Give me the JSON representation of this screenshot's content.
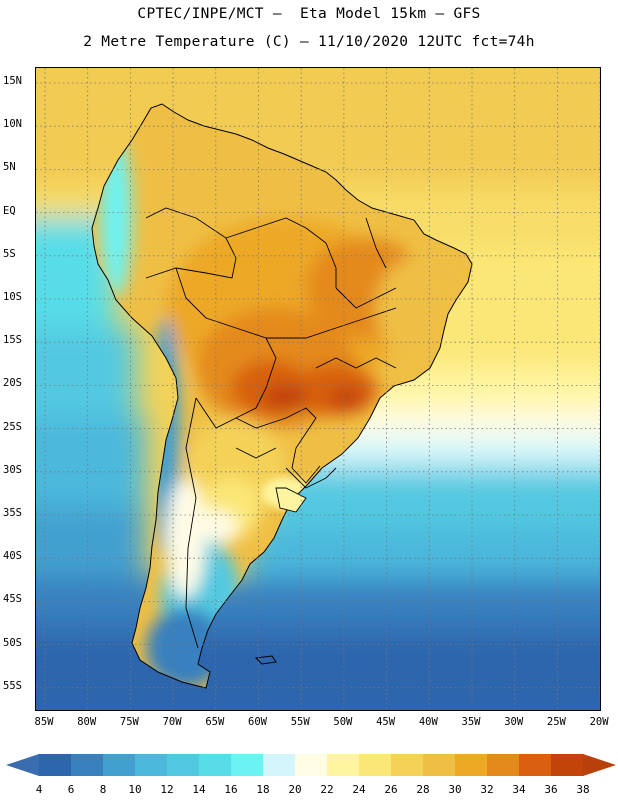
{
  "header": {
    "title_line1": "CPTEC/INPE/MCT –  Eta Model 15km – GFS",
    "title_line2": "2 Metre Temperature (C) – 11/10/2020 12UTC fct=74h"
  },
  "map": {
    "region": "South America",
    "variable": "2 Metre Temperature",
    "units": "C",
    "lat_labels": [
      "15N",
      "10N",
      "5N",
      "EQ",
      "5S",
      "10S",
      "15S",
      "20S",
      "25S",
      "30S",
      "35S",
      "40S",
      "45S",
      "50S",
      "55S"
    ],
    "lon_labels": [
      "85W",
      "80W",
      "75W",
      "70W",
      "65W",
      "60W",
      "55W",
      "50W",
      "45W",
      "40W",
      "35W",
      "30W",
      "25W",
      "20W"
    ]
  },
  "colorbar": {
    "labels": [
      "4",
      "6",
      "8",
      "10",
      "12",
      "14",
      "16",
      "18",
      "20",
      "22",
      "24",
      "26",
      "28",
      "30",
      "32",
      "34",
      "36",
      "38"
    ],
    "below_color": "#3a6db0",
    "above_color": "#b8400a",
    "colors": [
      "#2e66ad",
      "#3980bf",
      "#42a0d0",
      "#4bb8dc",
      "#52c9e1",
      "#57dde8",
      "#6df2f2",
      "#d2f6fb",
      "#fffce6",
      "#fff5a0",
      "#fbe777",
      "#f4d258",
      "#efbf45",
      "#eda825",
      "#e48a1c",
      "#d86010",
      "#c24408"
    ]
  }
}
